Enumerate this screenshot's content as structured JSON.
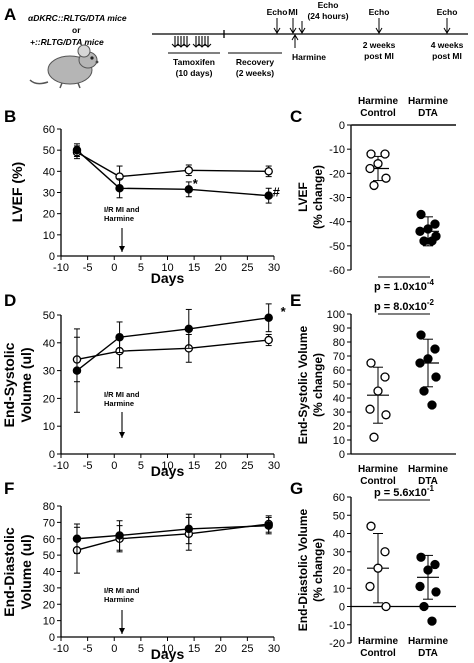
{
  "panel_letters": [
    "A",
    "B",
    "C",
    "D",
    "E",
    "F",
    "G"
  ],
  "timeline": {
    "mouse_line1": "αDKRC::RLTG/DTA mice",
    "mouse_line2": "or",
    "mouse_line3": "+::RLTG/DTA mice",
    "echo1": "Echo",
    "mi": "MI",
    "echo_24h_1": "Echo",
    "echo_24h_2": "(24 hours)",
    "echo_2w": "Echo",
    "echo_4w": "Echo",
    "tamoxifen_1": "Tamoxifen",
    "tamoxifen_2": "(10 days)",
    "recovery_1": "Recovery",
    "recovery_2": "(2 weeks)",
    "harmine": "Harmine",
    "two_weeks_1": "2 weeks",
    "two_weeks_2": "post MI",
    "four_weeks_1": "4 weeks",
    "four_weeks_2": "post MI"
  },
  "annotation": {
    "line1": "I/R MI and",
    "line2": "Harmine"
  },
  "chart_data": [
    {
      "id": "B",
      "type": "line",
      "xlabel": "Days",
      "ylabel": "LVEF (%)",
      "xlim": [
        -10,
        30
      ],
      "ylim": [
        0,
        60
      ],
      "xticks": [
        "-10",
        "-5",
        "0",
        "5",
        "10",
        "15",
        "20",
        "25",
        "30"
      ],
      "yticks": [
        "0",
        "10",
        "20",
        "30",
        "40",
        "50",
        "60"
      ],
      "x": [
        -7,
        1,
        14,
        29
      ],
      "series": [
        {
          "marker": "open",
          "values": [
            49,
            37.5,
            40.5,
            40
          ],
          "err": [
            3,
            5,
            2.5,
            2.5
          ]
        },
        {
          "marker": "filled",
          "values": [
            50,
            32,
            31.5,
            28.5
          ],
          "err": [
            3,
            4.5,
            3.5,
            3.5
          ]
        }
      ],
      "marks": [
        {
          "text": "*",
          "x": 14,
          "y": 34
        },
        {
          "text": "#",
          "x": 29,
          "y": 30
        }
      ]
    },
    {
      "id": "C",
      "type": "scatter",
      "ylabel": "LVEF\n(% change)",
      "ylim": [
        -60,
        0
      ],
      "yticks": [
        "0",
        "-10",
        "-20",
        "-30",
        "-40",
        "-50",
        "-60"
      ],
      "groups": [
        {
          "label1": "Harmine",
          "label2": "Control",
          "marker": "open",
          "values": [
            -12,
            -12,
            -16,
            -18,
            -22,
            -25
          ],
          "mean": -18,
          "sd": 5
        },
        {
          "label1": "Harmine",
          "label2": "DTA",
          "marker": "filled",
          "values": [
            -37,
            -41,
            -43,
            -44,
            -46,
            -48,
            -48
          ],
          "mean": -44,
          "sd": 6
        }
      ],
      "pvalue": {
        "prefix": "p = 1.0x10",
        "exp": "-4"
      }
    },
    {
      "id": "D",
      "type": "line",
      "xlabel": "Days",
      "ylabel": "End-Systolic\nVolume (ul)",
      "xlim": [
        -10,
        30
      ],
      "ylim": [
        0,
        50
      ],
      "xticks": [
        "-10",
        "-5",
        "0",
        "5",
        "10",
        "15",
        "20",
        "25",
        "30"
      ],
      "yticks": [
        "0",
        "10",
        "20",
        "30",
        "40",
        "50"
      ],
      "x": [
        -7,
        1,
        14,
        29
      ],
      "series": [
        {
          "marker": "open",
          "values": [
            34,
            37,
            38,
            41
          ],
          "err": [
            8,
            6,
            5,
            2
          ]
        },
        {
          "marker": "filled",
          "values": [
            30,
            42,
            45,
            49
          ],
          "err": [
            15,
            5.5,
            7,
            5
          ]
        }
      ],
      "marks": [
        {
          "text": "*",
          "x": 30.5,
          "y": 51
        }
      ]
    },
    {
      "id": "E",
      "type": "scatter",
      "ylabel": "End-Systolic Volume\n(% change)",
      "ylim": [
        0,
        100
      ],
      "yticks": [
        "0",
        "10",
        "20",
        "30",
        "40",
        "50",
        "60",
        "70",
        "80",
        "90",
        "100"
      ],
      "groups": [
        {
          "label1": "Harmine",
          "label2": "Control",
          "marker": "open",
          "values": [
            65,
            55,
            45,
            32,
            28,
            12
          ],
          "mean": 42,
          "sd": 20
        },
        {
          "label1": "Harmine",
          "label2": "DTA",
          "marker": "filled",
          "values": [
            85,
            75,
            68,
            65,
            55,
            45,
            35
          ],
          "mean": 65,
          "sd": 17
        }
      ],
      "pvalue": {
        "prefix": "p = 8.0x10",
        "exp": "-2"
      }
    },
    {
      "id": "F",
      "type": "line",
      "xlabel": "Days",
      "ylabel": "End-Diastolic\nVolume (ul)",
      "xlim": [
        -10,
        30
      ],
      "ylim": [
        0,
        80
      ],
      "xticks": [
        "-10",
        "-5",
        "0",
        "5",
        "10",
        "15",
        "20",
        "25",
        "30"
      ],
      "yticks": [
        "0",
        "10",
        "20",
        "30",
        "40",
        "50",
        "60",
        "70",
        "80"
      ],
      "x": [
        -7,
        1,
        14,
        29
      ],
      "series": [
        {
          "marker": "open",
          "values": [
            53,
            60,
            63,
            69
          ],
          "err": [
            14,
            8,
            10,
            5
          ]
        },
        {
          "marker": "filled",
          "values": [
            60,
            62,
            66,
            68
          ],
          "err": [
            9,
            9,
            9,
            5
          ]
        }
      ],
      "marks": []
    },
    {
      "id": "G",
      "type": "scatter",
      "ylabel": "End-Diastolic Volume\n(% change)",
      "ylim": [
        -20,
        60
      ],
      "yticks": [
        "60",
        "50",
        "40",
        "30",
        "20",
        "10",
        "0",
        "-10",
        "-20"
      ],
      "groups": [
        {
          "label1": "Harmine",
          "label2": "Control",
          "marker": "open",
          "values": [
            44,
            30,
            21,
            11,
            0
          ],
          "mean": 21,
          "sd": 19
        },
        {
          "label1": "Harmine",
          "label2": "DTA",
          "marker": "filled",
          "values": [
            27,
            23,
            20,
            11,
            8,
            0,
            -8
          ],
          "mean": 16,
          "sd": 12
        }
      ],
      "pvalue": {
        "prefix": "p = 5.6x10",
        "exp": "-1"
      }
    }
  ]
}
